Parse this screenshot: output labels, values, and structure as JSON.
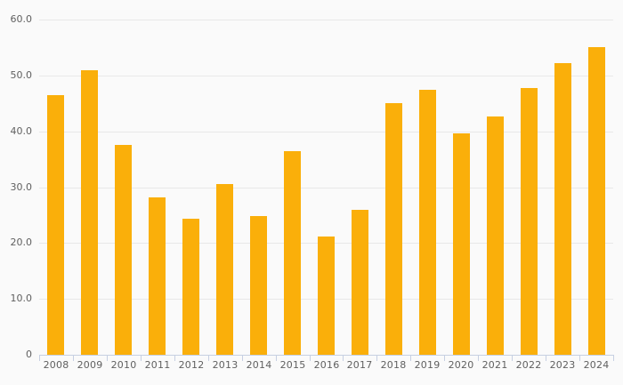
{
  "chart_data": {
    "type": "bar",
    "title": "",
    "xlabel": "",
    "ylabel": "",
    "categories": [
      "2008",
      "2009",
      "2010",
      "2011",
      "2012",
      "2013",
      "2014",
      "2015",
      "2016",
      "2017",
      "2018",
      "2019",
      "2020",
      "2021",
      "2022",
      "2023",
      "2024"
    ],
    "values": [
      46.5,
      51.0,
      37.5,
      28.2,
      24.3,
      30.5,
      24.8,
      36.5,
      21.1,
      25.9,
      45.0,
      47.5,
      39.6,
      42.7,
      47.7,
      52.2,
      55.0
    ],
    "ylim": [
      0,
      60
    ],
    "y_tick_values": [
      0,
      10,
      20,
      30,
      40,
      50,
      60
    ],
    "y_tick_labels": [
      "0",
      "10.0",
      "20.0",
      "30.0",
      "40.0",
      "50.0",
      "60.0"
    ],
    "grid": true,
    "legend_position": "none"
  },
  "colors": {
    "background": "#FAFAFA",
    "bar": "#FAAF0A",
    "gridline": "#E8E8E8",
    "axis": "#C7D0E2",
    "label_text": "#606060"
  }
}
